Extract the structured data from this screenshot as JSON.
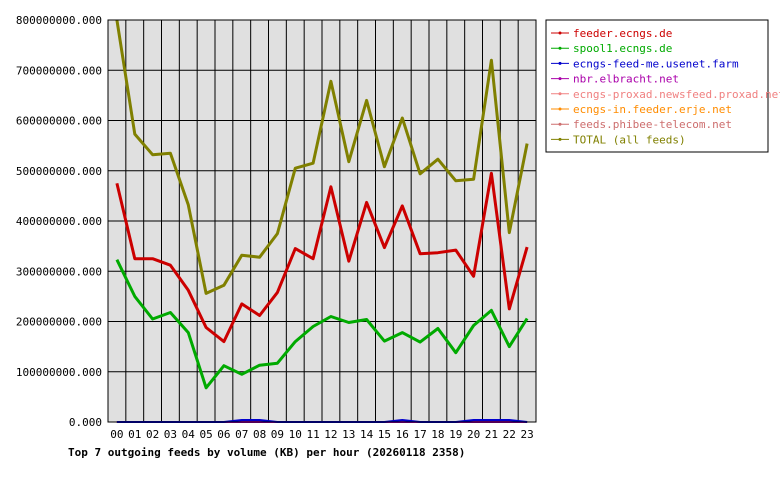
{
  "chart_data": {
    "type": "line",
    "title": "Top 7 outgoing feeds by volume (KB) per hour (20260118 2358)",
    "x": [
      "00",
      "01",
      "02",
      "03",
      "04",
      "05",
      "06",
      "07",
      "08",
      "09",
      "10",
      "11",
      "12",
      "13",
      "14",
      "15",
      "16",
      "17",
      "18",
      "19",
      "20",
      "21",
      "22",
      "23"
    ],
    "ylim": [
      0,
      800000000
    ],
    "y_ticks": [
      0,
      100000000,
      200000000,
      300000000,
      400000000,
      500000000,
      600000000,
      700000000,
      800000000
    ],
    "y_tick_labels": [
      "0.000",
      "100000000.000",
      "200000000.000",
      "300000000.000",
      "400000000.000",
      "500000000.000",
      "600000000.000",
      "700000000.000",
      "800000000.000"
    ],
    "grid": true,
    "legend_position": "right",
    "series": [
      {
        "name": "feeder.ecngs.de",
        "color": "#cc0000",
        "values": [
          475000000,
          325000000,
          325000000,
          312000000,
          262000000,
          188000000,
          160000000,
          235000000,
          212000000,
          258000000,
          345000000,
          325000000,
          468000000,
          320000000,
          437000000,
          347000000,
          430000000,
          335000000,
          337000000,
          342000000,
          290000000,
          495000000,
          225000000,
          348000000
        ]
      },
      {
        "name": "spool1.ecngs.de",
        "color": "#00aa00",
        "values": [
          323000000,
          250000000,
          205000000,
          218000000,
          178000000,
          68000000,
          112000000,
          95000000,
          113000000,
          117000000,
          160000000,
          190000000,
          210000000,
          198000000,
          204000000,
          161000000,
          178000000,
          159000000,
          186000000,
          138000000,
          192000000,
          222000000,
          150000000,
          206000000
        ]
      },
      {
        "name": "ecngs-feed-me.usenet.farm",
        "color": "#0000cc",
        "values": [
          0,
          0,
          0,
          0,
          0,
          0,
          0,
          4000000,
          4000000,
          0,
          0,
          0,
          0,
          0,
          0,
          0,
          4000000,
          0,
          0,
          0,
          4000000,
          4000000,
          4000000,
          0
        ]
      },
      {
        "name": "nbr.elbracht.net",
        "color": "#aa00aa",
        "values": [
          0,
          0,
          0,
          0,
          0,
          0,
          0,
          0,
          0,
          0,
          0,
          0,
          0,
          0,
          0,
          0,
          0,
          0,
          0,
          0,
          0,
          0,
          0,
          0
        ]
      },
      {
        "name": "ecngs-proxad.newsfeed.proxad.net",
        "color": "#f08080",
        "values": [
          0,
          0,
          0,
          0,
          0,
          0,
          0,
          0,
          0,
          0,
          0,
          0,
          0,
          0,
          0,
          0,
          0,
          0,
          0,
          0,
          0,
          0,
          0,
          0
        ]
      },
      {
        "name": "ecngs-in.feeder.erje.net",
        "color": "#ff8c00",
        "values": [
          0,
          0,
          0,
          0,
          0,
          0,
          0,
          0,
          0,
          0,
          0,
          0,
          0,
          0,
          0,
          0,
          0,
          0,
          0,
          0,
          0,
          0,
          0,
          0
        ]
      },
      {
        "name": "feeds.phibee-telecom.net",
        "color": "#cd6e6e",
        "values": [
          0,
          0,
          0,
          0,
          0,
          0,
          0,
          0,
          0,
          0,
          0,
          0,
          0,
          0,
          0,
          0,
          0,
          0,
          0,
          0,
          0,
          0,
          0,
          0
        ]
      },
      {
        "name": "TOTAL (all feeds)",
        "color": "#808000",
        "values": [
          800000000,
          573000000,
          532000000,
          535000000,
          432000000,
          256000000,
          272000000,
          332000000,
          328000000,
          375000000,
          505000000,
          515000000,
          678000000,
          518000000,
          640000000,
          508000000,
          605000000,
          494000000,
          523000000,
          480000000,
          483000000,
          720000000,
          377000000,
          554000000
        ]
      }
    ]
  }
}
